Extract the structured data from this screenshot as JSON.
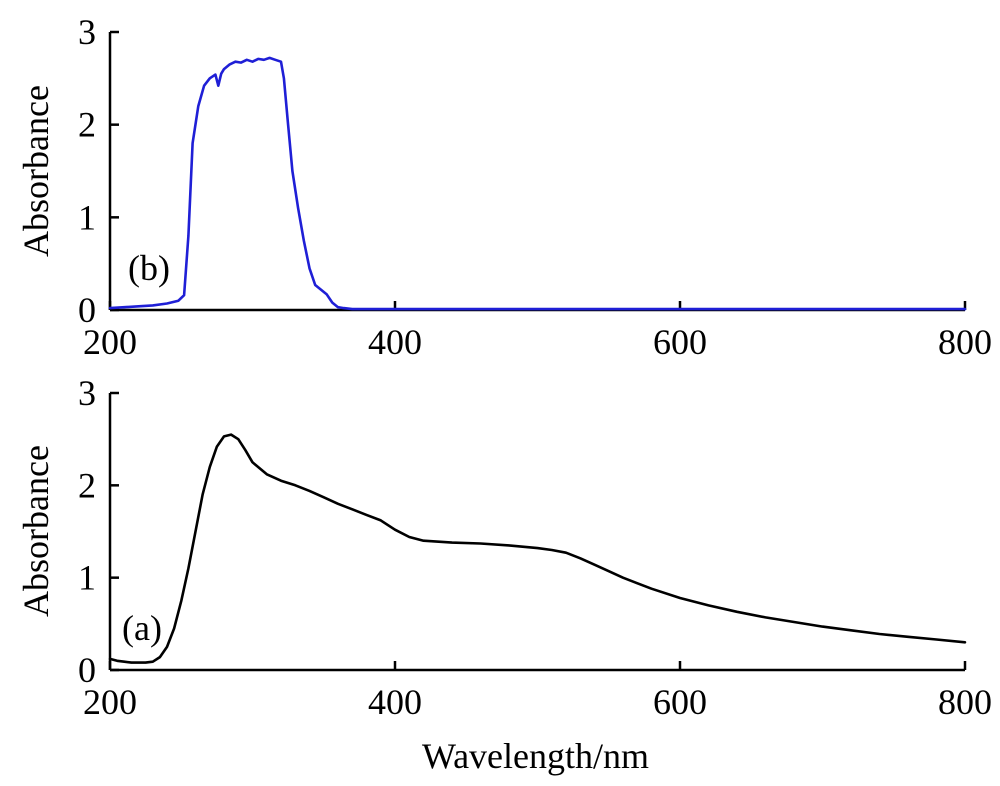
{
  "chart_data": [
    {
      "type": "line",
      "panel": "(b)",
      "title": "",
      "xlabel": "",
      "ylabel": "Absorbance",
      "xlim": [
        200,
        800
      ],
      "ylim": [
        0,
        3
      ],
      "xticks": [
        200,
        400,
        600,
        800
      ],
      "yticks": [
        0,
        1,
        2,
        3
      ],
      "grid": false,
      "series": [
        {
          "color": "#1f1fd6",
          "x": [
            200,
            210,
            220,
            230,
            240,
            248,
            252,
            255,
            258,
            262,
            266,
            270,
            274,
            276,
            278,
            280,
            284,
            288,
            292,
            296,
            300,
            304,
            308,
            312,
            316,
            320,
            322,
            325,
            328,
            332,
            336,
            340,
            344,
            348,
            352,
            356,
            360,
            364,
            370,
            380,
            400,
            450,
            500,
            550,
            600,
            650,
            700,
            750,
            800
          ],
          "y": [
            0.02,
            0.03,
            0.04,
            0.05,
            0.07,
            0.1,
            0.16,
            0.8,
            1.8,
            2.2,
            2.42,
            2.5,
            2.54,
            2.42,
            2.55,
            2.6,
            2.65,
            2.68,
            2.67,
            2.7,
            2.68,
            2.71,
            2.7,
            2.72,
            2.7,
            2.68,
            2.5,
            2.0,
            1.5,
            1.1,
            0.75,
            0.45,
            0.27,
            0.22,
            0.17,
            0.08,
            0.03,
            0.02,
            0.01,
            0.01,
            0.01,
            0.01,
            0.01,
            0.01,
            0.01,
            0.01,
            0.01,
            0.01,
            0.01
          ]
        }
      ]
    },
    {
      "type": "line",
      "panel": "(a)",
      "title": "",
      "xlabel": "Wavelength/nm",
      "ylabel": "Absorbance",
      "xlim": [
        200,
        800
      ],
      "ylim": [
        0,
        3
      ],
      "xticks": [
        200,
        400,
        600,
        800
      ],
      "yticks": [
        0,
        1,
        2,
        3
      ],
      "grid": false,
      "series": [
        {
          "color": "#000000",
          "x": [
            200,
            205,
            210,
            215,
            220,
            225,
            230,
            235,
            240,
            245,
            250,
            255,
            260,
            265,
            270,
            275,
            280,
            285,
            290,
            295,
            300,
            310,
            320,
            330,
            340,
            350,
            360,
            370,
            380,
            390,
            400,
            410,
            420,
            440,
            460,
            480,
            500,
            510,
            520,
            530,
            540,
            550,
            560,
            580,
            600,
            620,
            640,
            660,
            680,
            700,
            720,
            740,
            760,
            780,
            800
          ],
          "y": [
            0.12,
            0.1,
            0.09,
            0.08,
            0.08,
            0.08,
            0.09,
            0.14,
            0.25,
            0.45,
            0.75,
            1.1,
            1.5,
            1.9,
            2.2,
            2.42,
            2.53,
            2.55,
            2.5,
            2.38,
            2.25,
            2.12,
            2.05,
            2.0,
            1.94,
            1.87,
            1.8,
            1.74,
            1.68,
            1.62,
            1.52,
            1.44,
            1.4,
            1.38,
            1.37,
            1.35,
            1.32,
            1.3,
            1.27,
            1.21,
            1.14,
            1.07,
            1.0,
            0.88,
            0.78,
            0.7,
            0.63,
            0.57,
            0.52,
            0.47,
            0.43,
            0.39,
            0.36,
            0.33,
            0.3
          ]
        }
      ]
    }
  ]
}
